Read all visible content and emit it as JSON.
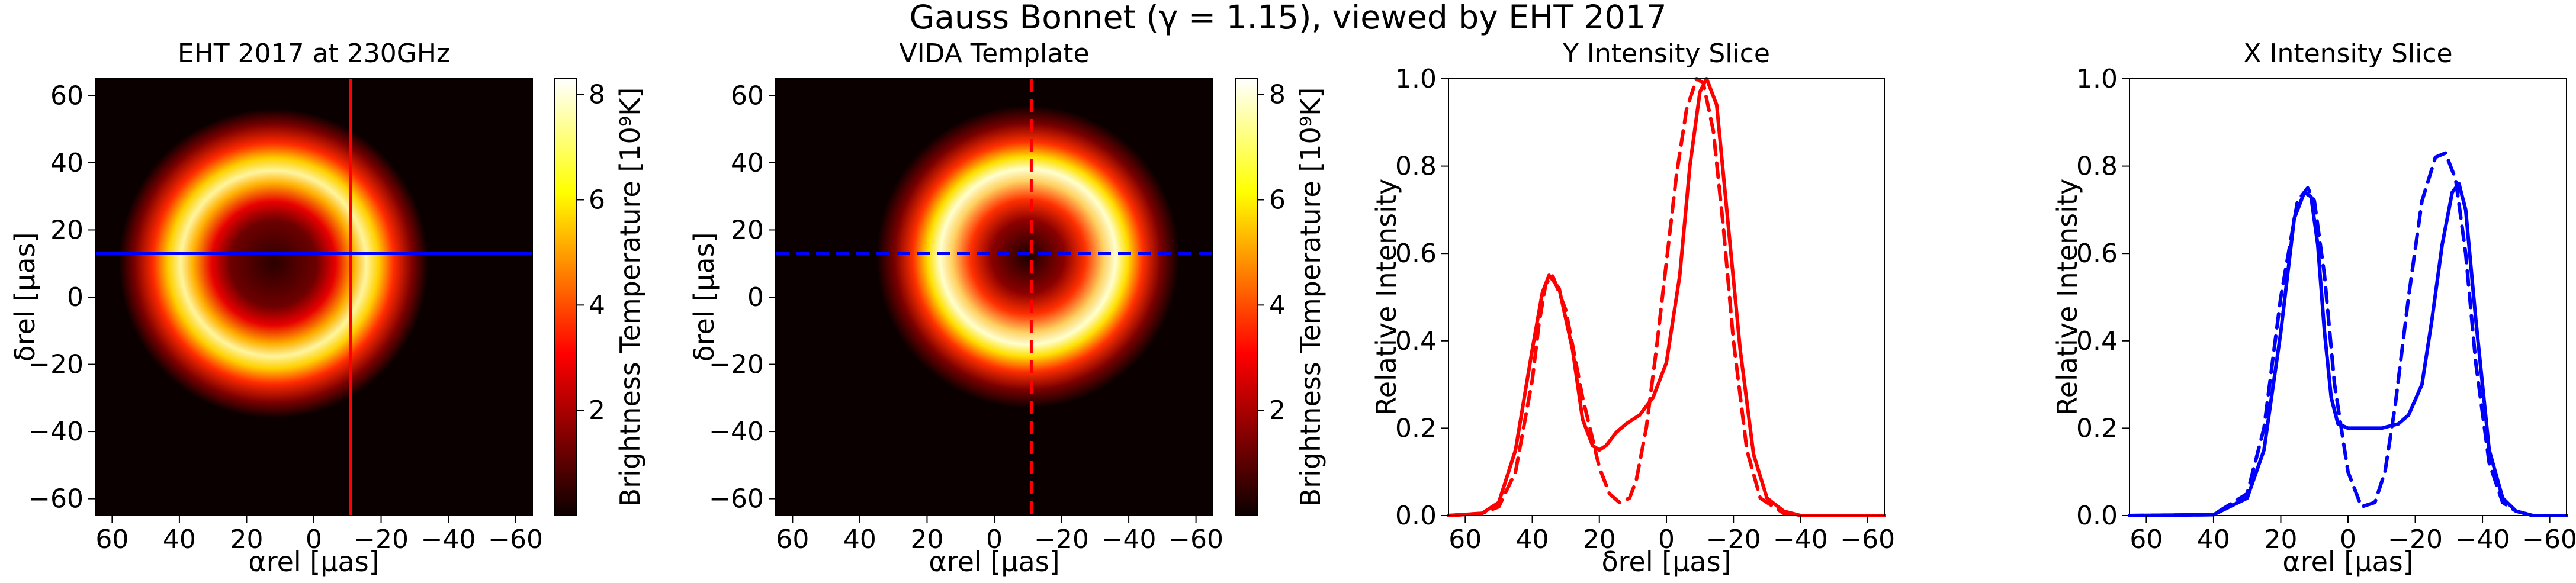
{
  "title": "Gauss Bonnet (γ = 1.15), viewed by EHT 2017",
  "colors": {
    "axis": "#000000",
    "red_line": "#ff0000",
    "blue_line": "#0000ff"
  },
  "chart_data": [
    {
      "type": "heatmap",
      "title": "EHT 2017 at 230GHz",
      "xlabel": "αrel [μas]",
      "ylabel": "δrel [μas]",
      "xlim": [
        65,
        -65
      ],
      "ylim": [
        -65,
        65
      ],
      "xticks": [
        60,
        40,
        20,
        0,
        -20,
        -40,
        -60
      ],
      "xticklabels": [
        "60",
        "40",
        "20",
        "0",
        "−20",
        "−40",
        "−60"
      ],
      "yticks": [
        60,
        40,
        20,
        0,
        -20,
        -40,
        -60
      ],
      "yticklabels": [
        "60",
        "40",
        "20",
        "0",
        "−20",
        "−40",
        "−60"
      ],
      "colormap": "hot",
      "ring": {
        "center_alpha": 12,
        "center_delta": 10,
        "radius": 24,
        "width": 11,
        "peak_temperature": 8.2
      },
      "slice_lines": {
        "vertical_alpha": -11,
        "horizontal_delta": 13,
        "vertical_style": "solid",
        "horizontal_style": "solid"
      },
      "colorbar": {
        "label": "Brightness Temperature [10⁹K]",
        "range": [
          0,
          8.3
        ],
        "ticks": [
          2,
          4,
          6,
          8
        ],
        "ticklabels": [
          "2",
          "4",
          "6",
          "8"
        ]
      }
    },
    {
      "type": "heatmap",
      "title": "VIDA Template",
      "xlabel": "αrel [μas]",
      "ylabel": "δrel [μas]",
      "xlim": [
        65,
        -65
      ],
      "ylim": [
        -65,
        65
      ],
      "xticks": [
        60,
        40,
        20,
        0,
        -20,
        -40,
        -60
      ],
      "xticklabels": [
        "60",
        "40",
        "20",
        "0",
        "−20",
        "−40",
        "−60"
      ],
      "yticks": [
        60,
        40,
        20,
        0,
        -20,
        -40,
        -60
      ],
      "yticklabels": [
        "60",
        "40",
        "20",
        "0",
        "−20",
        "−40",
        "−60"
      ],
      "colormap": "hot",
      "ring": {
        "center_alpha": -10,
        "center_delta": 12,
        "radius": 21,
        "width": 12,
        "peak_temperature": 8.2
      },
      "slice_lines": {
        "vertical_alpha": -11,
        "horizontal_delta": 13,
        "vertical_style": "dashed",
        "horizontal_style": "dashed"
      },
      "colorbar": {
        "label": "Brightness Temperature [10⁹K]",
        "range": [
          0,
          8.3
        ],
        "ticks": [
          2,
          4,
          6,
          8
        ],
        "ticklabels": [
          "2",
          "4",
          "6",
          "8"
        ]
      }
    },
    {
      "type": "line",
      "title": "Y Intensity Slice",
      "xlabel": "δrel [μas]",
      "ylabel": "Relative Intensity",
      "xlim": [
        65,
        -65
      ],
      "ylim": [
        0,
        1
      ],
      "xticks": [
        60,
        40,
        20,
        0,
        -20,
        -40,
        -60
      ],
      "xticklabels": [
        "60",
        "40",
        "20",
        "0",
        "−20",
        "−40",
        "−60"
      ],
      "yticks": [
        0,
        0.2,
        0.4,
        0.6,
        0.8,
        1.0
      ],
      "yticklabels": [
        "0.0",
        "0.2",
        "0.4",
        "0.6",
        "0.8",
        "1.0"
      ],
      "series": [
        {
          "style": "solid",
          "color": "#ff0000",
          "x": [
            65,
            55,
            50,
            45,
            40,
            37,
            35,
            32,
            28,
            25,
            22,
            20,
            18,
            15,
            12,
            8,
            4,
            0,
            -4,
            -7,
            -10,
            -12,
            -15,
            -18,
            -22,
            -26,
            -30,
            -35,
            -40,
            -50,
            -65
          ],
          "y": [
            0,
            0.005,
            0.03,
            0.15,
            0.38,
            0.51,
            0.55,
            0.52,
            0.38,
            0.22,
            0.16,
            0.15,
            0.16,
            0.19,
            0.21,
            0.23,
            0.27,
            0.35,
            0.55,
            0.8,
            0.97,
            1.0,
            0.94,
            0.7,
            0.38,
            0.14,
            0.04,
            0.01,
            0,
            0,
            0
          ]
        },
        {
          "style": "dashed",
          "color": "#ff0000",
          "x": [
            65,
            55,
            50,
            45,
            40,
            38,
            36,
            34,
            30,
            25,
            20,
            17,
            14,
            11,
            9,
            6,
            3,
            0,
            -3,
            -6,
            -9,
            -11,
            -14,
            -17,
            -20,
            -24,
            -28,
            -35,
            -40,
            -50,
            -65
          ],
          "y": [
            0,
            0.005,
            0.02,
            0.1,
            0.31,
            0.44,
            0.53,
            0.55,
            0.47,
            0.27,
            0.11,
            0.05,
            0.03,
            0.04,
            0.08,
            0.2,
            0.38,
            0.58,
            0.78,
            0.93,
            1.0,
            0.99,
            0.88,
            0.66,
            0.4,
            0.15,
            0.04,
            0.005,
            0,
            0,
            0
          ]
        }
      ]
    },
    {
      "type": "line",
      "title": "X Intensity Slice",
      "xlabel": "αrel [μas]",
      "ylabel": "Relative Intensity",
      "xlim": [
        65,
        -65
      ],
      "ylim": [
        0,
        1
      ],
      "xticks": [
        60,
        40,
        20,
        0,
        -20,
        -40,
        -60
      ],
      "xticklabels": [
        "60",
        "40",
        "20",
        "0",
        "−20",
        "−40",
        "−60"
      ],
      "yticks": [
        0,
        0.2,
        0.4,
        0.6,
        0.8,
        1.0
      ],
      "yticklabels": [
        "0.0",
        "0.2",
        "0.4",
        "0.6",
        "0.8",
        "1.0"
      ],
      "series": [
        {
          "style": "solid",
          "color": "#0000ff",
          "x": [
            65,
            40,
            30,
            25,
            20,
            16,
            13,
            11,
            9,
            7,
            5,
            3,
            0,
            -5,
            -10,
            -15,
            -18,
            -22,
            -25,
            -28,
            -31,
            -33,
            -35,
            -38,
            -42,
            -46,
            -50,
            -55,
            -65
          ],
          "y": [
            0,
            0.002,
            0.04,
            0.15,
            0.42,
            0.68,
            0.74,
            0.73,
            0.62,
            0.42,
            0.27,
            0.21,
            0.2,
            0.2,
            0.2,
            0.21,
            0.23,
            0.3,
            0.45,
            0.62,
            0.74,
            0.76,
            0.7,
            0.45,
            0.15,
            0.04,
            0.01,
            0,
            0
          ]
        },
        {
          "style": "dashed",
          "color": "#0000ff",
          "x": [
            65,
            40,
            30,
            25,
            20,
            15,
            12,
            10,
            7,
            4,
            0,
            -4,
            -8,
            -11,
            -14,
            -18,
            -22,
            -26,
            -29,
            -32,
            -35,
            -38,
            -42,
            -46,
            -50,
            -55,
            -65
          ],
          "y": [
            0,
            0.002,
            0.05,
            0.2,
            0.5,
            0.72,
            0.75,
            0.72,
            0.55,
            0.3,
            0.1,
            0.02,
            0.03,
            0.1,
            0.25,
            0.5,
            0.72,
            0.82,
            0.83,
            0.77,
            0.6,
            0.35,
            0.12,
            0.03,
            0.01,
            0,
            0
          ]
        }
      ]
    }
  ]
}
